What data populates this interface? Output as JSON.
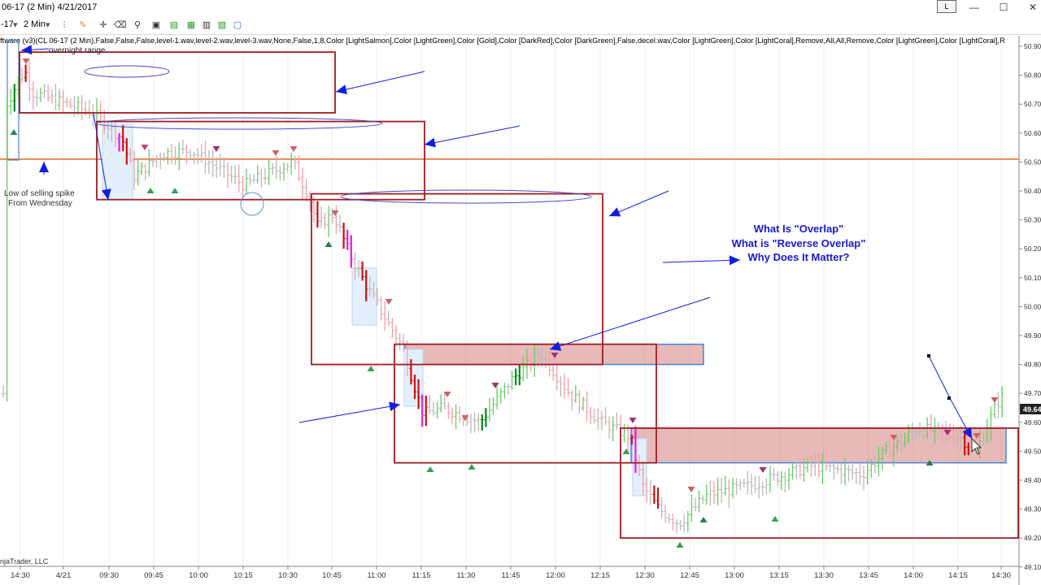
{
  "window": {
    "title": "06-17 (2 Min)  4/21/2017",
    "badge": "L",
    "min_glyph": "—",
    "max_glyph": "☐",
    "close_glyph": "✕"
  },
  "toolbar": {
    "instrument": "-17",
    "interval": "2 Min",
    "dropdown_glyph": "▾"
  },
  "indicator_line": "ftware (v3)(CL 06-17 (2 Min),False,False,False,level-1.wav,level-2.wav,level-3.wav,None,False,1,8,Color [LightSalmon],Color [LightGreen],Color [Gold],Color [DarkRed],Color [DarkGreen],False,decel.wav,Color [LightGreen],Color [LightCoral],Remove,All,All,Remove,Color [LightGreen],Color [LightCoral],R",
  "copyright": "njaTrader, LLC",
  "colors": {
    "rect_border": "#a01c22",
    "zone_fill": "#d98a8a",
    "zone_border": "#3a7fe0",
    "arrow": "#1020dd",
    "hline": "#e8622a",
    "up_bar": "#66cc66",
    "down_bar": "#f0a0a8",
    "neutral_bar": "#b8b8b8",
    "strong_up": "#0a8a1a",
    "strong_down": "#cc1010",
    "magenta": "#e020e0",
    "annot_blue": "#1a1ad0"
  },
  "annotations": {
    "overnight": "overnight range",
    "low_spike_1": "Low of selling spike",
    "low_spike_2": "From Wednesday",
    "q1": "What Is \"Overlap\"",
    "q2": "What is \"Reverse Overlap\"",
    "q3": "Why Does It Matter?"
  },
  "chart_data": {
    "type": "bar",
    "subtype": "OHLC price bars (2 Min)",
    "instrument": "CL 06-17",
    "date": "4/21/2017",
    "y_ticks": [
      "50.90",
      "50.80",
      "50.70",
      "50.60",
      "50.50",
      "50.40",
      "50.30",
      "50.20",
      "50.10",
      "50.00",
      "49.90",
      "49.80",
      "49.70",
      "49.60",
      "49.50",
      "49.40",
      "49.30",
      "49.20",
      "49.10"
    ],
    "ylim": [
      49.1,
      50.93
    ],
    "x_ticks": [
      "14:30",
      "4/21",
      "09:30",
      "09:45",
      "10:00",
      "10:15",
      "10:30",
      "10:45",
      "11:00",
      "11:15",
      "11:30",
      "11:45",
      "12:00",
      "12:15",
      "12:30",
      "12:45",
      "13:00",
      "13:15",
      "13:30",
      "13:45",
      "14:00",
      "14:15",
      "14:30"
    ],
    "last_price_label": "49.64",
    "horizontal_line": 50.51,
    "overlap_boxes": [
      {
        "name": "overnight range",
        "high": 50.88,
        "low": 50.67,
        "from": "4/21",
        "to": "10:30"
      },
      {
        "name": "box 2",
        "high": 50.64,
        "low": 50.37,
        "from": "09:30",
        "to": "10:45"
      },
      {
        "name": "box 3",
        "high": 50.39,
        "low": 49.8,
        "from": "10:45",
        "to": "12:15"
      },
      {
        "name": "box 4",
        "high": 49.87,
        "low": 49.46,
        "from": "11:00",
        "to": "12:30"
      },
      {
        "name": "box 5",
        "high": 49.58,
        "low": 49.2,
        "from": "12:30",
        "to": "14:30"
      }
    ],
    "shaded_zones": [
      {
        "high": 49.87,
        "low": 49.8,
        "from": "11:15",
        "to": "12:45"
      },
      {
        "high": 49.58,
        "low": 49.46,
        "from": "12:30",
        "to": "14:30"
      }
    ],
    "grid": "vertical",
    "legend": "none"
  }
}
